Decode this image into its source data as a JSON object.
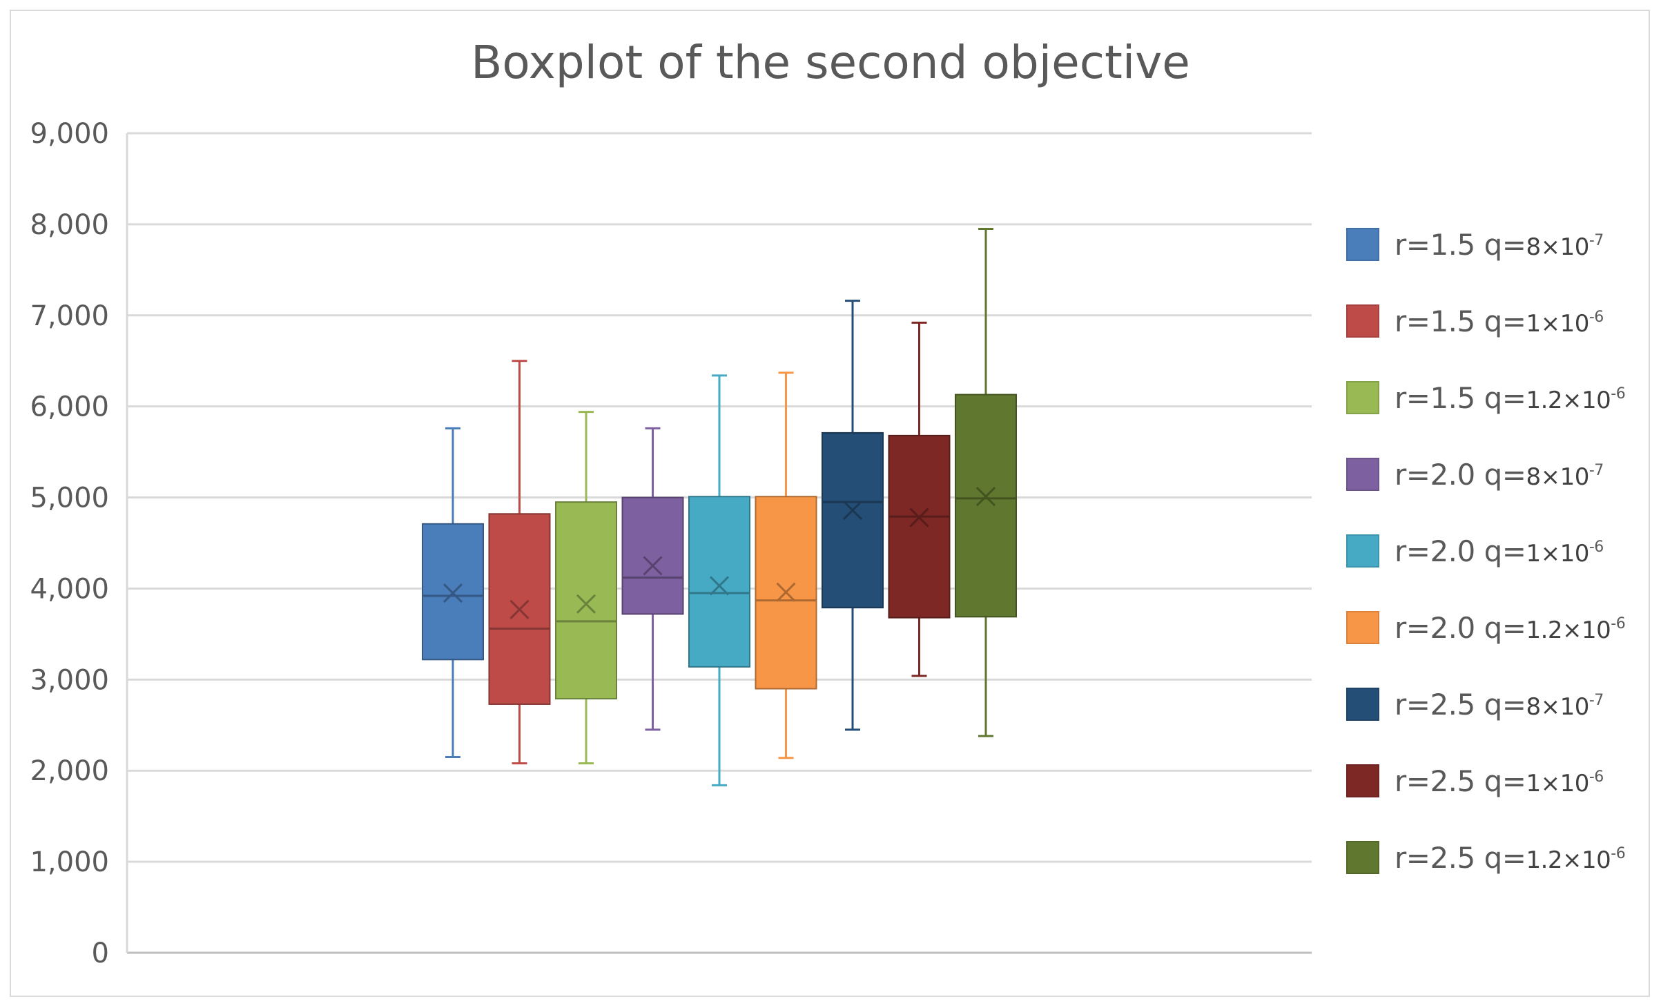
{
  "chart_data": {
    "type": "boxplot",
    "title": "Boxplot of the second objective",
    "ylim": [
      0,
      9000
    ],
    "y_ticks": [
      "0",
      "1,000",
      "2,000",
      "3,000",
      "4,000",
      "5,000",
      "6,000",
      "7,000",
      "8,000",
      "9,000"
    ],
    "grid": true,
    "legend_position": "right",
    "series": [
      {
        "name_r": "r=1.5 q=",
        "name_q": "8×10",
        "exp": "-7",
        "color": "#4A7EBB",
        "min": 2150,
        "q1": 3220,
        "median": 3920,
        "q3": 4710,
        "max": 5760,
        "mean": 3950
      },
      {
        "name_r": "r=1.5 q=",
        "name_q": "1×10",
        "exp": "-6",
        "color": "#BE4B48",
        "min": 2080,
        "q1": 2730,
        "median": 3560,
        "q3": 4820,
        "max": 6500,
        "mean": 3770
      },
      {
        "name_r": "r=1.5 q=",
        "name_q": "1.2×10",
        "exp": "-6",
        "color": "#98B954",
        "min": 2080,
        "q1": 2790,
        "median": 3640,
        "q3": 4950,
        "max": 5940,
        "mean": 3830
      },
      {
        "name_r": "r=2.0 q=",
        "name_q": "8×10",
        "exp": "-7",
        "color": "#7D60A0",
        "min": 2450,
        "q1": 3720,
        "median": 4120,
        "q3": 5000,
        "max": 5760,
        "mean": 4250
      },
      {
        "name_r": "r=2.0 q=",
        "name_q": "1×10",
        "exp": "-6",
        "color": "#46AAC5",
        "min": 1840,
        "q1": 3140,
        "median": 3950,
        "q3": 5010,
        "max": 6340,
        "mean": 4030
      },
      {
        "name_r": "r=2.0 q=",
        "name_q": "1.2×10",
        "exp": "-6",
        "color": "#F79646",
        "min": 2140,
        "q1": 2900,
        "median": 3870,
        "q3": 5010,
        "max": 6370,
        "mean": 3960
      },
      {
        "name_r": "r=2.5 q=",
        "name_q": "8×10",
        "exp": "-7",
        "color": "#254E76",
        "min": 2450,
        "q1": 3790,
        "median": 4950,
        "q3": 5710,
        "max": 7160,
        "mean": 4860
      },
      {
        "name_r": "r=2.5 q=",
        "name_q": "1×10",
        "exp": "-6",
        "color": "#7E2826",
        "min": 3040,
        "q1": 3680,
        "median": 4790,
        "q3": 5680,
        "max": 6920,
        "mean": 4780
      },
      {
        "name_r": "r=2.5 q=",
        "name_q": "1.2×10",
        "exp": "-6",
        "color": "#5F772E",
        "min": 2380,
        "q1": 3690,
        "median": 4990,
        "q3": 6130,
        "max": 7950,
        "mean": 5010
      }
    ]
  }
}
